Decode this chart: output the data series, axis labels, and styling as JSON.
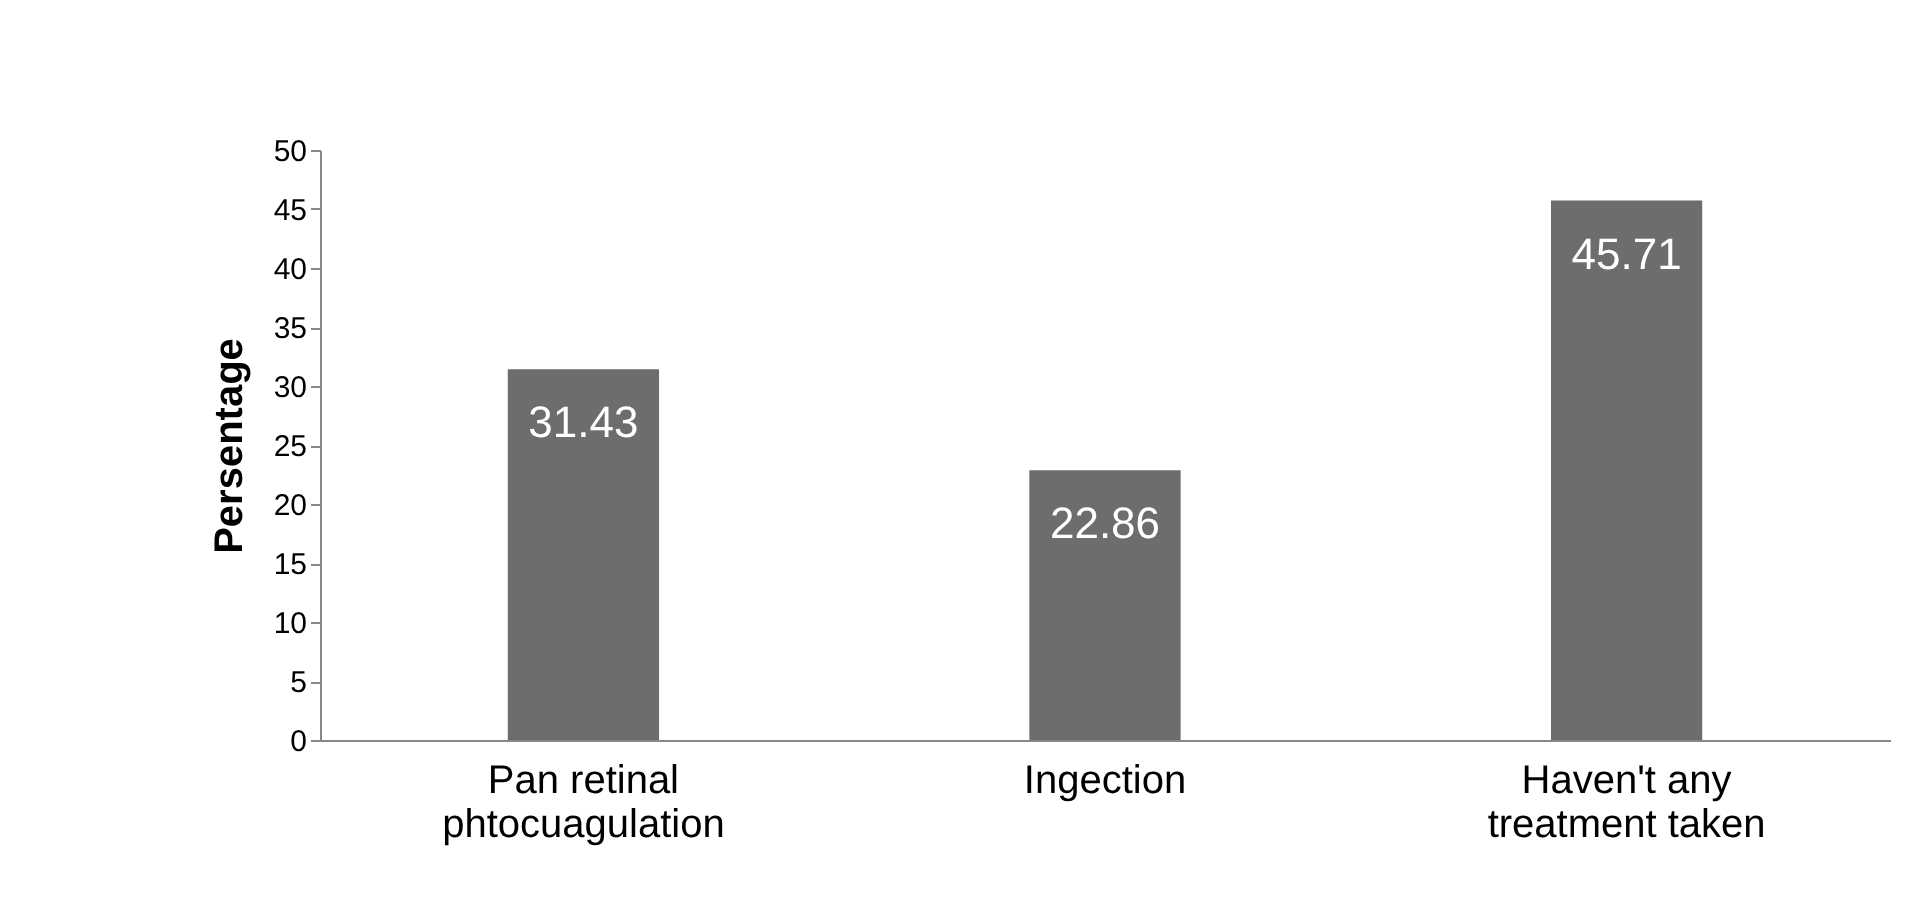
{
  "chart_data": {
    "type": "bar",
    "ylabel": "Persentage",
    "categories": [
      "Pan retinal\nphtocuagulation",
      "Ingection",
      "Haven't any\ntreatment taken"
    ],
    "values": [
      31.43,
      22.86,
      45.71
    ],
    "color": "#6d6d6d",
    "data_labels": true,
    "ylim": [
      0,
      50
    ],
    "yticks": [
      0,
      5,
      10,
      15,
      20,
      25,
      30,
      35,
      40,
      45,
      50
    ],
    "grid": false
  }
}
